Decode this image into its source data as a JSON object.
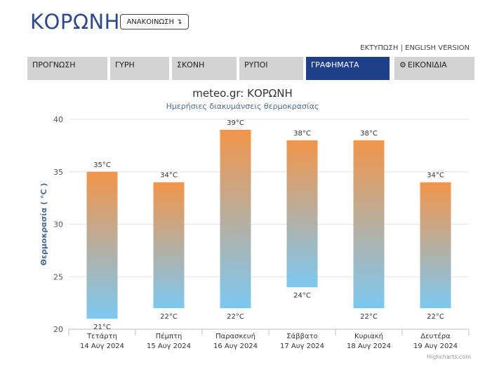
{
  "header": {
    "title": "ΚΟΡΩΝΗ",
    "announce_label": "ΑΝΑΚΟΙΝΩΣΗ ↴",
    "print_label": "ΕΚΤΥΠΩΣΗ",
    "separator": " | ",
    "english_label": "ENGLISH VERSION"
  },
  "tabs": [
    {
      "label": "ΠΡΟΓΝΩΣΗ"
    },
    {
      "label": "ΓΥΡΗ"
    },
    {
      "label": "ΣΚΟΝΗ"
    },
    {
      "label": "ΡΥΠΟΙ"
    },
    {
      "label": "ΓΡΑΦΗΜΑΤΑ"
    },
    {
      "label": "ΕΙΚΟΝΙΔΙΑ",
      "icon": "gear-icon"
    }
  ],
  "active_tab": "ΓΡΑΦΗΜΑΤΑ",
  "colors": {
    "accent": "#1f3f8a",
    "bar_top": "#f2954a",
    "bar_bottom": "#7dc8f2"
  },
  "chart_data": {
    "type": "bar",
    "title": "meteo.gr: ΚΟΡΩΝΗ",
    "subtitle": "Ημερήσιες διακυμάνσεις θερμοκρασίας",
    "ylabel": "Θερμοκρασία ( °C )",
    "ylim": [
      20,
      40
    ],
    "yticks": [
      20,
      25,
      30,
      35,
      40
    ],
    "grid": true,
    "categories": [
      {
        "day": "Τετάρτη",
        "date": "14 Αυγ 2024"
      },
      {
        "day": "Πέμπτη",
        "date": "15 Αυγ 2024"
      },
      {
        "day": "Παρασκευή",
        "date": "16 Αυγ 2024"
      },
      {
        "day": "Σάββατο",
        "date": "17 Αυγ 2024"
      },
      {
        "day": "Κυριακή",
        "date": "18 Αυγ 2024"
      },
      {
        "day": "Δευτέρα",
        "date": "19 Αυγ 2024"
      }
    ],
    "min": [
      21,
      22,
      22,
      24,
      22,
      22
    ],
    "max": [
      35,
      34,
      39,
      38,
      38,
      34
    ],
    "min_labels": [
      "21°C",
      "22°C",
      "22°C",
      "24°C",
      "22°C",
      "22°C"
    ],
    "max_labels": [
      "35°C",
      "34°C",
      "39°C",
      "38°C",
      "38°C",
      "34°C"
    ]
  },
  "credit": "Highcharts.com"
}
